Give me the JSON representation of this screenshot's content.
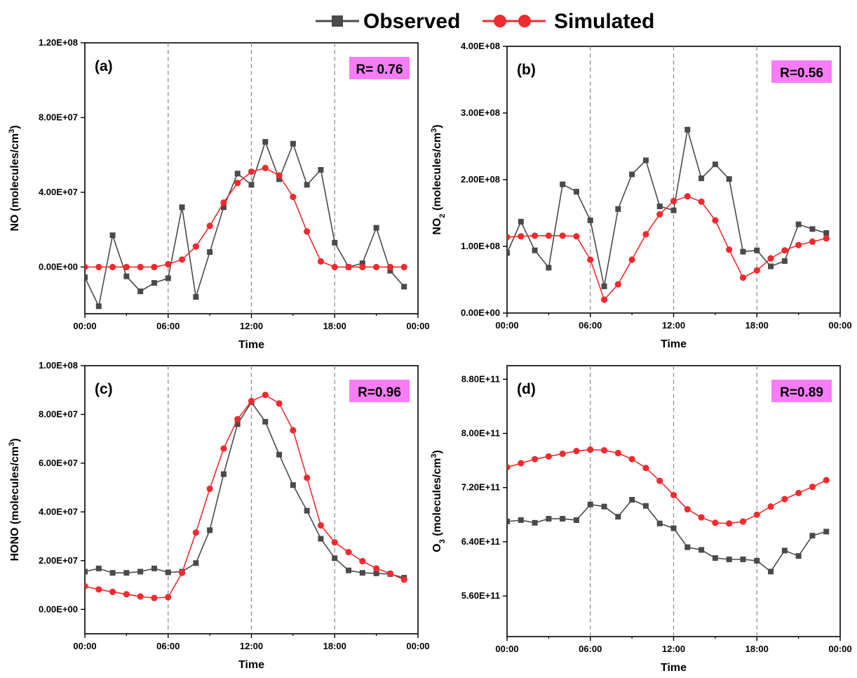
{
  "legend": {
    "observed": "Observed",
    "simulated": "Simulated"
  },
  "colors": {
    "observed": "#4a4a4a",
    "simulated": "#ef2b2f",
    "r_box": "#f77df7",
    "guide": "#8a8a8a"
  },
  "chart_data": [
    {
      "type": "line",
      "panel_label": "(a)",
      "r_label": "R= 0.76",
      "xlabel": "Time",
      "ylabel_html": "NO (molecules/cm<tspan baseline-shift='super' font-size='11'>3</tspan>)",
      "xlim": [
        0,
        24
      ],
      "ylim": [
        -25000000.0,
        120000000.0
      ],
      "x_ticks": [
        0,
        6,
        12,
        18,
        24
      ],
      "x_tick_labels": [
        "00:00",
        "06:00",
        "12:00",
        "18:00",
        "00:00"
      ],
      "y_ticks": [
        0,
        40000000.0,
        80000000.0,
        120000000.0
      ],
      "y_tick_labels": [
        "0.00E+00",
        "4.00E+07",
        "8.00E+07",
        "1.20E+08"
      ],
      "guides": [
        6,
        12,
        18
      ],
      "series": [
        {
          "key": "observed",
          "marker": "square",
          "x": [
            0,
            1,
            2,
            3,
            4,
            5,
            6,
            7,
            8,
            9,
            10,
            11,
            12,
            13,
            14,
            15,
            16,
            17,
            18,
            19,
            20,
            21,
            22,
            23
          ],
          "values": [
            -5500000.0,
            -21000000.0,
            17000000.0,
            -5000000.0,
            -13000000.0,
            -8500000.0,
            -6000000.0,
            32000000.0,
            -16000000.0,
            8000000.0,
            32000000.0,
            50000000.0,
            44000000.0,
            67000000.0,
            47000000.0,
            66000000.0,
            44000000.0,
            52000000.0,
            13000000.0,
            0,
            2000000.0,
            21000000.0,
            -2000000.0,
            -10500000.0
          ]
        },
        {
          "key": "simulated",
          "marker": "circle",
          "x": [
            0,
            1,
            2,
            3,
            4,
            5,
            6,
            7,
            8,
            9,
            10,
            11,
            12,
            13,
            14,
            15,
            16,
            17,
            18,
            19,
            20,
            21,
            22,
            23
          ],
          "values": [
            0,
            0,
            0,
            0,
            0,
            0,
            1500000.0,
            4000000.0,
            11000000.0,
            22000000.0,
            34500000.0,
            45000000.0,
            51000000.0,
            53000000.0,
            49000000.0,
            37500000.0,
            19000000.0,
            3000000.0,
            0,
            0,
            0,
            0,
            0,
            0
          ]
        }
      ]
    },
    {
      "type": "line",
      "panel_label": "(b)",
      "r_label": "R=0.56",
      "xlabel": "Time",
      "ylabel_html": "NO<tspan baseline-shift='sub' font-size='11'>2</tspan> (molecules/cm<tspan baseline-shift='super' font-size='11'>3</tspan>)",
      "xlim": [
        0,
        24
      ],
      "ylim": [
        0,
        400000000.0
      ],
      "x_ticks": [
        0,
        6,
        12,
        18,
        24
      ],
      "x_tick_labels": [
        "00:00",
        "06:00",
        "12:00",
        "18:00",
        "00:00"
      ],
      "y_ticks": [
        0,
        100000000.0,
        200000000.0,
        300000000.0,
        400000000.0
      ],
      "y_tick_labels": [
        "0.00E+00",
        "1.00E+08",
        "2.00E+08",
        "3.00E+08",
        "4.00E+08"
      ],
      "guides": [
        6,
        12,
        18
      ],
      "series": [
        {
          "key": "observed",
          "marker": "square",
          "x": [
            0,
            1,
            2,
            3,
            4,
            5,
            6,
            7,
            8,
            9,
            10,
            11,
            12,
            13,
            14,
            15,
            16,
            17,
            18,
            19,
            20,
            21,
            22,
            23
          ],
          "values": [
            90000000.0,
            137000000.0,
            94000000.0,
            68000000.0,
            193000000.0,
            182000000.0,
            139000000.0,
            40000000.0,
            156000000.0,
            208000000.0,
            229000000.0,
            160000000.0,
            154000000.0,
            275000000.0,
            202000000.0,
            223000000.0,
            201000000.0,
            92000000.0,
            94000000.0,
            70000000.0,
            78000000.0,
            133000000.0,
            126000000.0,
            120000000.0
          ]
        },
        {
          "key": "simulated",
          "marker": "circle",
          "x": [
            0,
            1,
            2,
            3,
            4,
            5,
            6,
            7,
            8,
            9,
            10,
            11,
            12,
            13,
            14,
            15,
            16,
            17,
            18,
            19,
            20,
            21,
            22,
            23
          ],
          "values": [
            114000000.0,
            115000000.0,
            116000000.0,
            116000000.0,
            116000000.0,
            115000000.0,
            80000000.0,
            20000000.0,
            43000000.0,
            80000000.0,
            118000000.0,
            148000000.0,
            168000000.0,
            175000000.0,
            167000000.0,
            139000000.0,
            95000000.0,
            53000000.0,
            64000000.0,
            82000000.0,
            94000000.0,
            102000000.0,
            107000000.0,
            112000000.0
          ]
        }
      ]
    },
    {
      "type": "line",
      "panel_label": "(c)",
      "r_label": "R=0.96",
      "xlabel": "Time",
      "ylabel_html": "HONO (molecules/cm<tspan baseline-shift='super' font-size='11'>3</tspan>)",
      "xlim": [
        0,
        24
      ],
      "ylim": [
        -10000000.0,
        100000000.0
      ],
      "x_ticks": [
        0,
        6,
        12,
        18,
        24
      ],
      "x_tick_labels": [
        "00:00",
        "06:00",
        "12:00",
        "18:00",
        "00:00"
      ],
      "y_ticks": [
        0,
        20000000.0,
        40000000.0,
        60000000.0,
        80000000.0,
        100000000.0
      ],
      "y_tick_labels": [
        "0.00E+00",
        "2.00E+07",
        "4.00E+07",
        "6.00E+07",
        "8.00E+07",
        "1.00E+08"
      ],
      "guides": [
        6,
        12,
        18
      ],
      "series": [
        {
          "key": "observed",
          "marker": "square",
          "x": [
            0,
            1,
            2,
            3,
            4,
            5,
            6,
            7,
            8,
            9,
            10,
            11,
            12,
            13,
            14,
            15,
            16,
            17,
            18,
            19,
            20,
            21,
            22,
            23
          ],
          "values": [
            15500000.0,
            16800000.0,
            15000000.0,
            15000000.0,
            15500000.0,
            16800000.0,
            15200000.0,
            15500000.0,
            19000000.0,
            32500000.0,
            55500000.0,
            76000000.0,
            85000000.0,
            77000000.0,
            63500000.0,
            51000000.0,
            40500000.0,
            29000000.0,
            21000000.0,
            16000000.0,
            15000000.0,
            14800000.0,
            14500000.0,
            13000000.0
          ]
        },
        {
          "key": "simulated",
          "marker": "circle",
          "x": [
            0,
            1,
            2,
            3,
            4,
            5,
            6,
            7,
            8,
            9,
            10,
            11,
            12,
            13,
            14,
            15,
            16,
            17,
            18,
            19,
            20,
            21,
            22,
            23
          ],
          "values": [
            9500000.0,
            8200000.0,
            7200000.0,
            6200000.0,
            5300000.0,
            4700000.0,
            5000000.0,
            15000000.0,
            31500000.0,
            49500000.0,
            66000000.0,
            78000000.0,
            85500000.0,
            88000000.0,
            84500000.0,
            73500000.0,
            54000000.0,
            34500000.0,
            27500000.0,
            23500000.0,
            19800000.0,
            16800000.0,
            14700000.0,
            12200000.0
          ]
        }
      ]
    },
    {
      "type": "line",
      "panel_label": "(d)",
      "r_label": "R=0.89",
      "xlabel": "Time",
      "ylabel_html": "O<tspan baseline-shift='sub' font-size='11'>3</tspan> (molecules/cm<tspan baseline-shift='super' font-size='11'>3</tspan>)",
      "xlim": [
        0,
        24
      ],
      "ylim": [
        500000000000.0,
        900000000000.0
      ],
      "x_ticks": [
        0,
        6,
        12,
        18,
        24
      ],
      "x_tick_labels": [
        "00:00",
        "06:00",
        "12:00",
        "18:00",
        "00:00"
      ],
      "y_ticks": [
        560000000000.0,
        640000000000.0,
        720000000000.0,
        800000000000.0,
        880000000000.0
      ],
      "y_tick_labels": [
        "5.60E+11",
        "6.40E+11",
        "7.20E+11",
        "8.00E+11",
        "8.80E+11"
      ],
      "guides": [
        6,
        12,
        18
      ],
      "series": [
        {
          "key": "observed",
          "marker": "square",
          "x": [
            0,
            1,
            2,
            3,
            4,
            5,
            6,
            7,
            8,
            9,
            10,
            11,
            12,
            13,
            14,
            15,
            16,
            17,
            18,
            19,
            20,
            21,
            22,
            23
          ],
          "values": [
            670000000000.0,
            672000000000.0,
            668000000000.0,
            674000000000.0,
            674000000000.0,
            672000000000.0,
            695000000000.0,
            692000000000.0,
            677000000000.0,
            702000000000.0,
            693000000000.0,
            667000000000.0,
            660000000000.0,
            632000000000.0,
            628000000000.0,
            616000000000.0,
            614000000000.0,
            614000000000.0,
            612000000000.0,
            596000000000.0,
            627000000000.0,
            619000000000.0,
            649000000000.0,
            655000000000.0
          ]
        },
        {
          "key": "simulated",
          "marker": "circle",
          "x": [
            0,
            1,
            2,
            3,
            4,
            5,
            6,
            7,
            8,
            9,
            10,
            11,
            12,
            13,
            14,
            15,
            16,
            17,
            18,
            19,
            20,
            21,
            22,
            23
          ],
          "values": [
            750000000000.0,
            756000000000.0,
            762000000000.0,
            766000000000.0,
            770000000000.0,
            774000000000.0,
            776000000000.0,
            775000000000.0,
            771000000000.0,
            762000000000.0,
            749000000000.0,
            730000000000.0,
            709000000000.0,
            688000000000.0,
            676000000000.0,
            668000000000.0,
            667000000000.0,
            670000000000.0,
            680000000000.0,
            692000000000.0,
            703000000000.0,
            712000000000.0,
            721000000000.0,
            731000000000.0
          ]
        }
      ]
    }
  ]
}
